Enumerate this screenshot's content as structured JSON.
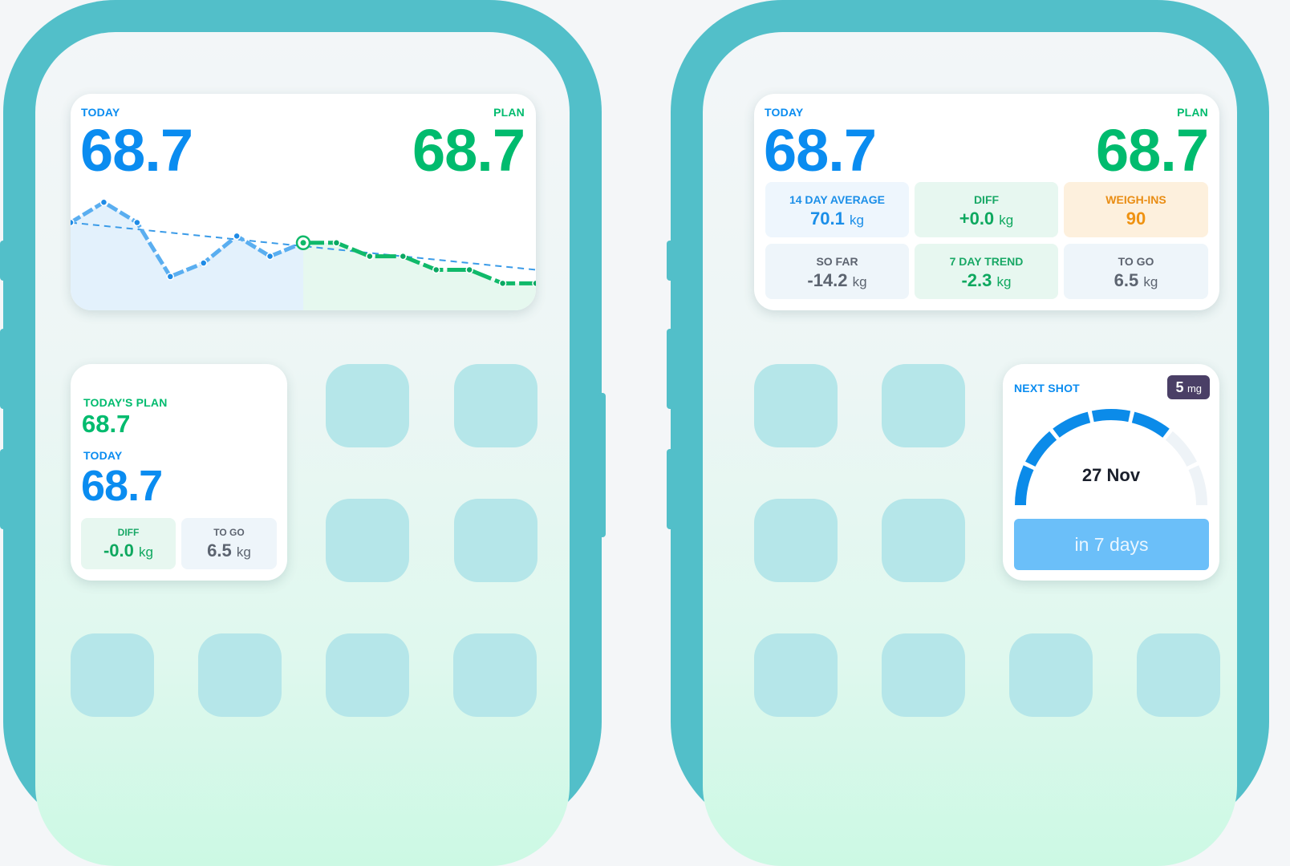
{
  "left_phone": {
    "chart_widget": {
      "today_label": "TODAY",
      "today_value": "68.7",
      "plan_label": "PLAN",
      "plan_value": "68.7",
      "chart_data": {
        "type": "line",
        "series": [
          {
            "values": [
              0,
              1,
              2,
              3,
              4,
              5,
              6,
              7
            ],
            "y": [
              70.9,
              71.2,
              70.9,
              70.1,
              70.3,
              70.7,
              70.4,
              70.6
            ]
          },
          {
            "values": [
              7,
              8,
              9,
              10,
              11,
              12,
              13,
              14
            ],
            "y": [
              70.6,
              70.6,
              70.4,
              70.4,
              70.2,
              70.2,
              70.0,
              70.0
            ]
          }
        ],
        "trend": {
          "start": 70.9,
          "end": 70.2
        },
        "colors": {
          "actual": "#5aaef0",
          "plan": "#10b96a",
          "trend": "#3a9be8"
        }
      }
    },
    "small_widget": {
      "plan_label": "TODAY'S PLAN",
      "plan_value": "68.7",
      "today_label": "TODAY",
      "today_value": "68.7",
      "diff": {
        "label": "DIFF",
        "value": "-0.0",
        "unit": "kg"
      },
      "to_go": {
        "label": "TO GO",
        "value": "6.5",
        "unit": "kg"
      }
    }
  },
  "right_phone": {
    "stats_widget": {
      "today_label": "TODAY",
      "today_value": "68.7",
      "plan_label": "PLAN",
      "plan_value": "68.7",
      "tiles": [
        {
          "label": "14 DAY AVERAGE",
          "value": "70.1",
          "unit": "kg"
        },
        {
          "label": "DIFF",
          "value": "+0.0",
          "unit": "kg"
        },
        {
          "label": "WEIGH-INS",
          "value": "90",
          "unit": ""
        },
        {
          "label": "SO FAR",
          "value": "-14.2",
          "unit": "kg"
        },
        {
          "label": "7 DAY TREND",
          "value": "-2.3",
          "unit": "kg"
        },
        {
          "label": "TO GO",
          "value": "6.5",
          "unit": "kg"
        }
      ]
    },
    "shot_widget": {
      "title": "NEXT SHOT",
      "dose_value": "5",
      "dose_unit": "mg",
      "date": "27 Nov",
      "countdown": "in 7 days",
      "progress_segments_filled": 5,
      "progress_segments_total": 7
    }
  },
  "colors": {
    "phone_frame": "#52bfc9",
    "today_blue": "#0a8cf0",
    "plan_green": "#00bb6e",
    "app_icon": "#b5e6e9",
    "countdown_button": "#6bbff9",
    "dose_badge": "#4a3f66"
  }
}
